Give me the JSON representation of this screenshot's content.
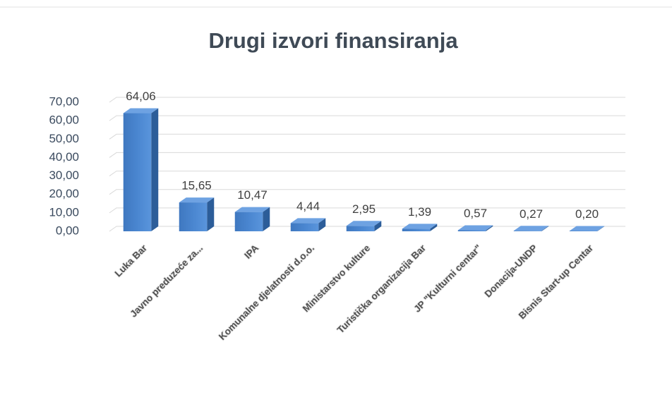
{
  "chart_data": {
    "type": "bar",
    "title": "Drugi izvori finansiranja",
    "categories": [
      "Luka Bar",
      "Javno preduzeće za...",
      "IPA",
      "Komunalne djelatnosti d.o.o.",
      "Ministarstvo kulture",
      "Turistička organizacija Bar",
      "JP \"Kulturni centar\"",
      "Donacija-UNDP",
      "Bisnis Start-up Centar"
    ],
    "values": [
      64.06,
      15.65,
      10.47,
      4.44,
      2.95,
      1.39,
      0.57,
      0.27,
      0.2
    ],
    "value_labels": [
      "64,06",
      "15,65",
      "10,47",
      "4,44",
      "2,95",
      "1,39",
      "0,57",
      "0,27",
      "0,20"
    ],
    "color": "#4a86d0",
    "ylim": [
      0,
      70
    ],
    "yticks": [
      {
        "value": 0,
        "label": "0,00"
      },
      {
        "value": 10,
        "label": "10,00"
      },
      {
        "value": 20,
        "label": "20,00"
      },
      {
        "value": 30,
        "label": "30,00"
      },
      {
        "value": 40,
        "label": "40,00"
      },
      {
        "value": 50,
        "label": "50,00"
      },
      {
        "value": 60,
        "label": "60,00"
      },
      {
        "value": 70,
        "label": "70,00"
      }
    ],
    "grid": true
  }
}
